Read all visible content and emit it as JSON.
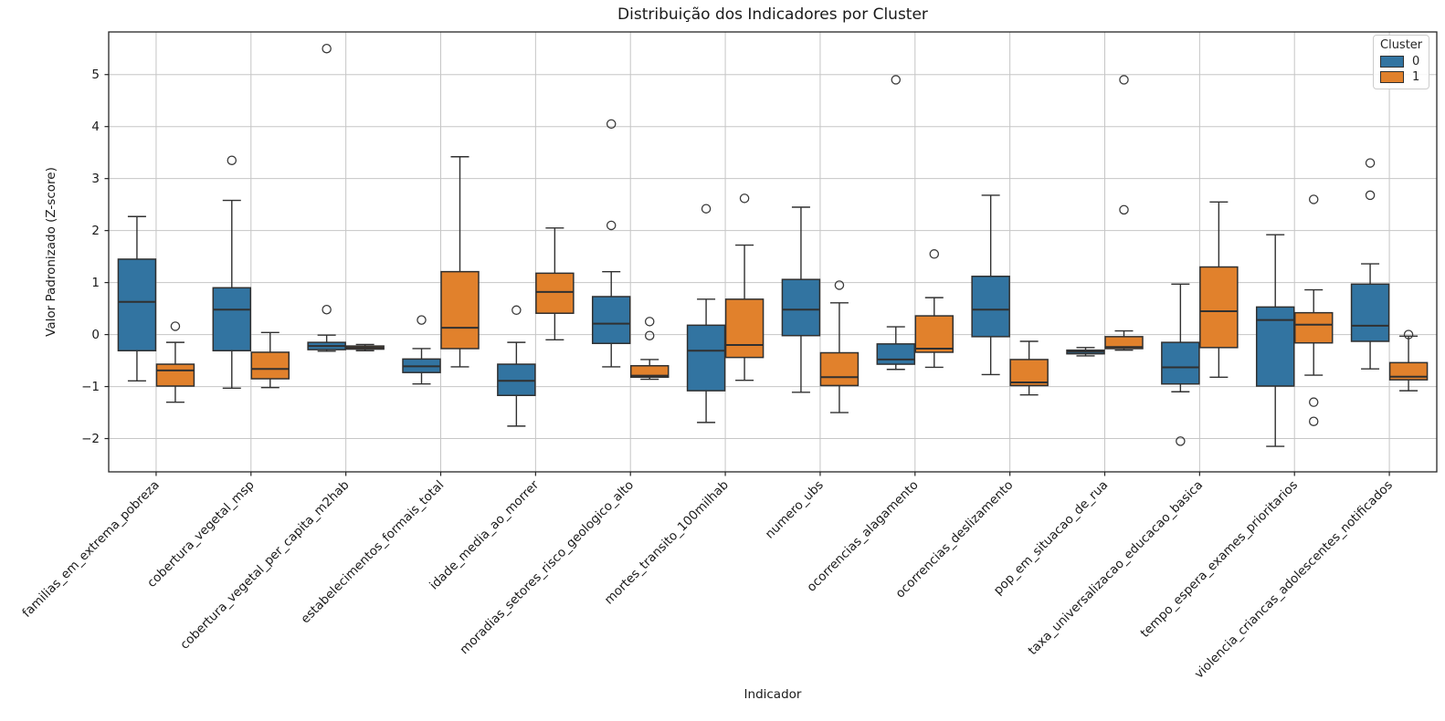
{
  "chart_data": {
    "type": "boxplot",
    "title": "Distribuição dos Indicadores por Cluster",
    "xlabel": "Indicador",
    "ylabel": "Valor Padronizado (Z-score)",
    "grid": true,
    "ylim": [
      -2.64,
      5.82
    ],
    "yticks": [
      -2,
      -1,
      0,
      1,
      2,
      3,
      4,
      5
    ],
    "ytick_labels": [
      "−2",
      "−1",
      "0",
      "1",
      "2",
      "3",
      "4",
      "5"
    ],
    "legend": {
      "title": "Cluster",
      "position": "upper right"
    },
    "categories": [
      "familias_em_extrema_pobreza",
      "cobertura_vegetal_msp",
      "cobertura_vegetal_per_capita_m2hab",
      "estabelecimentos_formais_total",
      "idade_media_ao_morrer",
      "moradias_setores_risco_geologico_alto",
      "mortes_transito_100milhab",
      "numero_ubs",
      "ocorrencias_alagamento",
      "ocorrencias_deslizamento",
      "pop_em_situacao_de_rua",
      "taxa_universalizacao_educacao_basica",
      "tempo_espera_exames_prioritarios",
      "violencia_criancas_adolescentes_notificados"
    ],
    "series": [
      {
        "name": "0",
        "color": "#3274a1",
        "boxes": [
          {
            "whislo": -0.89,
            "q1": -0.31,
            "med": 0.63,
            "q3": 1.45,
            "whishi": 2.27,
            "outliers": []
          },
          {
            "whislo": -1.03,
            "q1": -0.31,
            "med": 0.48,
            "q3": 0.9,
            "whishi": 2.58,
            "outliers": [
              3.35
            ]
          },
          {
            "whislo": -0.32,
            "q1": -0.29,
            "med": -0.22,
            "q3": -0.15,
            "whishi": -0.01,
            "outliers": [
              5.5,
              0.48
            ]
          },
          {
            "whislo": -0.95,
            "q1": -0.73,
            "med": -0.61,
            "q3": -0.47,
            "whishi": -0.27,
            "outliers": [
              0.28
            ]
          },
          {
            "whislo": -1.76,
            "q1": -1.17,
            "med": -0.89,
            "q3": -0.57,
            "whishi": -0.15,
            "outliers": [
              0.47
            ]
          },
          {
            "whislo": -0.62,
            "q1": -0.17,
            "med": 0.21,
            "q3": 0.73,
            "whishi": 1.21,
            "outliers": [
              4.05,
              2.1
            ]
          },
          {
            "whislo": -1.69,
            "q1": -1.08,
            "med": -0.31,
            "q3": 0.18,
            "whishi": 0.68,
            "outliers": [
              2.42
            ]
          },
          {
            "whislo": -1.11,
            "q1": -0.02,
            "med": 0.48,
            "q3": 1.06,
            "whishi": 2.45,
            "outliers": []
          },
          {
            "whislo": -0.67,
            "q1": -0.57,
            "med": -0.48,
            "q3": -0.18,
            "whishi": 0.15,
            "outliers": [
              4.9
            ]
          },
          {
            "whislo": -0.77,
            "q1": -0.04,
            "med": 0.48,
            "q3": 1.12,
            "whishi": 2.68,
            "outliers": []
          },
          {
            "whislo": -0.41,
            "q1": -0.37,
            "med": -0.33,
            "q3": -0.3,
            "whishi": -0.25,
            "outliers": []
          },
          {
            "whislo": -1.1,
            "q1": -0.95,
            "med": -0.63,
            "q3": -0.15,
            "whishi": 0.97,
            "outliers": [
              -2.05
            ]
          },
          {
            "whislo": -2.15,
            "q1": -0.99,
            "med": 0.28,
            "q3": 0.53,
            "whishi": 1.92,
            "outliers": []
          },
          {
            "whislo": -0.66,
            "q1": -0.13,
            "med": 0.17,
            "q3": 0.97,
            "whishi": 1.36,
            "outliers": [
              3.3,
              2.68
            ]
          }
        ]
      },
      {
        "name": "1",
        "color": "#e1812c",
        "boxes": [
          {
            "whislo": -1.3,
            "q1": -0.99,
            "med": -0.69,
            "q3": -0.57,
            "whishi": -0.15,
            "outliers": [
              0.16
            ]
          },
          {
            "whislo": -1.02,
            "q1": -0.85,
            "med": -0.66,
            "q3": -0.34,
            "whishi": 0.04,
            "outliers": []
          },
          {
            "whislo": -0.31,
            "q1": -0.28,
            "med": -0.25,
            "q3": -0.22,
            "whishi": -0.19,
            "outliers": []
          },
          {
            "whislo": -0.62,
            "q1": -0.27,
            "med": 0.13,
            "q3": 1.21,
            "whishi": 3.42,
            "outliers": []
          },
          {
            "whislo": -0.1,
            "q1": 0.41,
            "med": 0.82,
            "q3": 1.18,
            "whishi": 2.05,
            "outliers": []
          },
          {
            "whislo": -0.86,
            "q1": -0.82,
            "med": -0.79,
            "q3": -0.6,
            "whishi": -0.48,
            "outliers": [
              0.25,
              -0.02
            ]
          },
          {
            "whislo": -0.88,
            "q1": -0.44,
            "med": -0.2,
            "q3": 0.68,
            "whishi": 1.72,
            "outliers": [
              2.62
            ]
          },
          {
            "whislo": -1.5,
            "q1": -0.98,
            "med": -0.82,
            "q3": -0.35,
            "whishi": 0.61,
            "outliers": [
              0.95
            ]
          },
          {
            "whislo": -0.63,
            "q1": -0.34,
            "med": -0.27,
            "q3": 0.36,
            "whishi": 0.71,
            "outliers": [
              1.55
            ]
          },
          {
            "whislo": -1.16,
            "q1": -0.98,
            "med": -0.92,
            "q3": -0.48,
            "whishi": -0.13,
            "outliers": []
          },
          {
            "whislo": -0.3,
            "q1": -0.27,
            "med": -0.24,
            "q3": -0.04,
            "whishi": 0.07,
            "outliers": [
              4.9,
              2.4
            ]
          },
          {
            "whislo": -0.82,
            "q1": -0.25,
            "med": 0.45,
            "q3": 1.3,
            "whishi": 2.55,
            "outliers": []
          },
          {
            "whislo": -0.78,
            "q1": -0.16,
            "med": 0.19,
            "q3": 0.42,
            "whishi": 0.86,
            "outliers": [
              2.6,
              -1.3,
              -1.67
            ]
          },
          {
            "whislo": -1.08,
            "q1": -0.87,
            "med": -0.81,
            "q3": -0.54,
            "whishi": -0.03,
            "outliers": [
              0.0
            ]
          }
        ]
      }
    ]
  }
}
